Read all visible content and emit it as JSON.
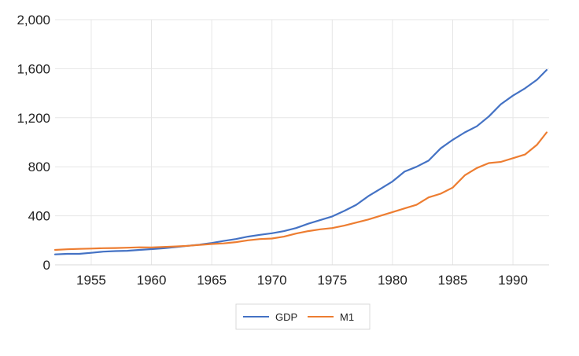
{
  "chart_data": {
    "type": "line",
    "title": "",
    "xlabel": "",
    "ylabel": "",
    "xlim": [
      1952,
      1993
    ],
    "ylim": [
      0,
      2000
    ],
    "x_ticks": [
      1955,
      1960,
      1965,
      1970,
      1975,
      1980,
      1985,
      1990
    ],
    "x_tick_labels": [
      "1955",
      "1960",
      "1965",
      "1970",
      "1975",
      "1980",
      "1985",
      "1990"
    ],
    "y_ticks": [
      0,
      400,
      800,
      1200,
      1600,
      2000
    ],
    "y_tick_labels": [
      "0",
      "400",
      "800",
      "1,200",
      "1,600",
      "2,000"
    ],
    "grid": true,
    "legend_position": "bottom",
    "legend": [
      "GDP",
      "M1"
    ],
    "colors": {
      "GDP": "#4472c4",
      "M1": "#ed7d31",
      "grid": "#e6e6e6"
    },
    "series": [
      {
        "name": "GDP",
        "x": [
          1952,
          1953,
          1954,
          1955,
          1956,
          1957,
          1958,
          1959,
          1960,
          1961,
          1962,
          1963,
          1964,
          1965,
          1966,
          1967,
          1968,
          1969,
          1970,
          1971,
          1972,
          1973,
          1974,
          1975,
          1976,
          1977,
          1978,
          1979,
          1980,
          1981,
          1982,
          1983,
          1984,
          1985,
          1986,
          1987,
          1988,
          1989,
          1990,
          1991,
          1992,
          1992.8
        ],
        "values": [
          85,
          90,
          90,
          98,
          108,
          112,
          115,
          122,
          128,
          135,
          145,
          155,
          165,
          178,
          195,
          210,
          230,
          245,
          258,
          275,
          300,
          335,
          365,
          395,
          440,
          490,
          560,
          620,
          680,
          760,
          800,
          850,
          950,
          1020,
          1080,
          1130,
          1210,
          1310,
          1380,
          1440,
          1510,
          1590
        ]
      },
      {
        "name": "M1",
        "x": [
          1952,
          1953,
          1954,
          1955,
          1956,
          1957,
          1958,
          1959,
          1960,
          1961,
          1962,
          1963,
          1964,
          1965,
          1966,
          1967,
          1968,
          1969,
          1970,
          1971,
          1972,
          1973,
          1974,
          1975,
          1976,
          1977,
          1978,
          1979,
          1980,
          1981,
          1982,
          1983,
          1984,
          1985,
          1986,
          1987,
          1988,
          1989,
          1990,
          1991,
          1992,
          1992.8
        ],
        "values": [
          122,
          127,
          130,
          133,
          136,
          137,
          140,
          143,
          142,
          146,
          150,
          155,
          163,
          170,
          175,
          185,
          200,
          210,
          215,
          230,
          255,
          275,
          290,
          300,
          320,
          345,
          370,
          400,
          430,
          460,
          490,
          550,
          580,
          630,
          730,
          790,
          830,
          840,
          870,
          900,
          980,
          1080
        ]
      }
    ]
  }
}
